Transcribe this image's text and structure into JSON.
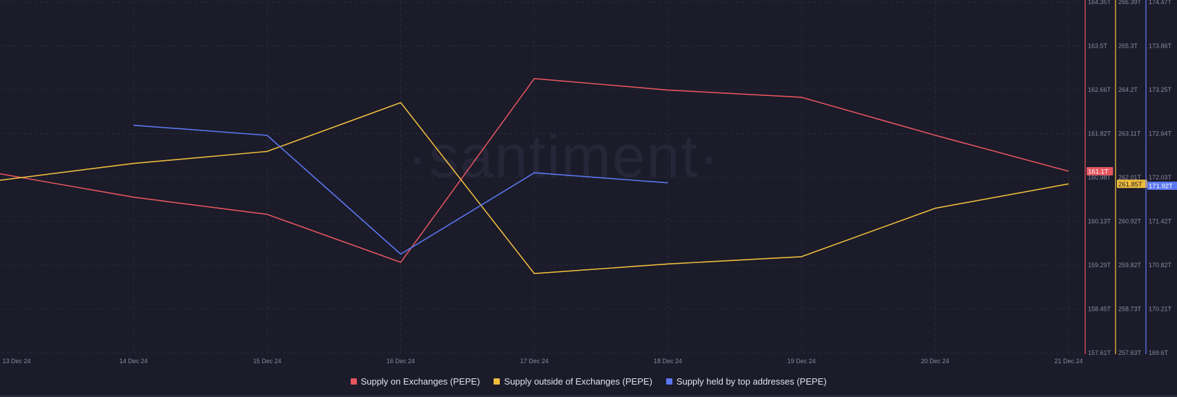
{
  "chart_data": {
    "type": "line",
    "title": "",
    "watermark": "·santiment·",
    "x": [
      "13 Dec 24",
      "14 Dec 24",
      "15 Dec 24",
      "16 Dec 24",
      "17 Dec 24",
      "18 Dec 24",
      "19 Dec 24",
      "20 Dec 24",
      "21 Dec 24"
    ],
    "grid": true,
    "legend_position": "bottom-center",
    "axes": [
      {
        "id": "exchanges",
        "color": "#e5555e",
        "ylim": [
          157.61,
          164.35
        ],
        "ticks": [
          "157.61T",
          "158.45T",
          "159.29T",
          "160.13T",
          "160.98T",
          "161.82T",
          "162.66T",
          "163.5T",
          "164.35T"
        ],
        "current_value": 161.1,
        "current_label": "161.1T"
      },
      {
        "id": "outside",
        "color": "#f0be3c",
        "ylim": [
          257.63,
          266.39
        ],
        "ticks": [
          "257.63T",
          "258.73T",
          "259.82T",
          "260.92T",
          "262.01T",
          "263.11T",
          "264.2T",
          "265.3T",
          "266.39T"
        ],
        "current_value": 261.85,
        "current_label": "261.85T"
      },
      {
        "id": "top",
        "color": "#5b78f0",
        "ylim": [
          169.6,
          174.47
        ],
        "ticks": [
          "169.6T",
          "170.21T",
          "170.82T",
          "171.42T",
          "172.03T",
          "172.64T",
          "173.25T",
          "173.86T",
          "174.47T"
        ],
        "current_value": 171.92,
        "current_label": "171.92T"
      }
    ],
    "series": [
      {
        "name": "Supply on Exchanges (PEPE)",
        "axis": "exchanges",
        "color": "#e5555e",
        "points": [
          [
            0,
            161.05
          ],
          [
            1,
            160.6
          ],
          [
            2,
            160.27
          ],
          [
            3,
            159.35
          ],
          [
            4,
            162.88
          ],
          [
            5,
            162.66
          ],
          [
            6,
            162.52
          ],
          [
            7,
            161.79
          ],
          [
            8,
            161.1
          ]
        ]
      },
      {
        "name": "Supply outside of Exchanges (PEPE)",
        "axis": "outside",
        "color": "#f0be3c",
        "points": [
          [
            0,
            261.94
          ],
          [
            1,
            262.36
          ],
          [
            2,
            262.66
          ],
          [
            3,
            263.88
          ],
          [
            4,
            259.61
          ],
          [
            5,
            259.85
          ],
          [
            6,
            260.03
          ],
          [
            7,
            261.24
          ],
          [
            8,
            261.85
          ]
        ]
      },
      {
        "name": "Supply held by top addresses (PEPE)",
        "axis": "top",
        "color": "#5b78f0",
        "points": [
          [
            1,
            172.76
          ],
          [
            2,
            172.62
          ],
          [
            3,
            170.97
          ],
          [
            4,
            172.1
          ],
          [
            5,
            171.96
          ]
        ]
      }
    ]
  }
}
